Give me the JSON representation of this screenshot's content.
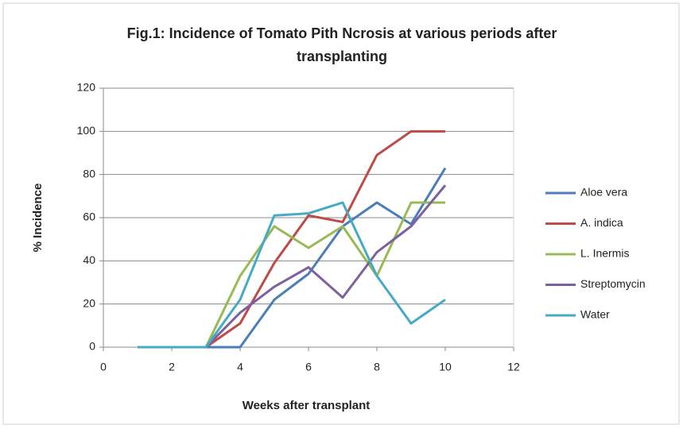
{
  "chart_data": {
    "type": "line",
    "title_lines": [
      "Fig.1: Incidence of Tomato Pith Ncrosis at various periods after",
      "transplanting"
    ],
    "x_label": "Weeks after transplant",
    "y_label": "% Incidence",
    "x": [
      1,
      2,
      3,
      4,
      5,
      6,
      7,
      8,
      9,
      10
    ],
    "series": [
      {
        "name": "Aloe vera",
        "color": "#4a7ebb",
        "values": [
          0,
          0,
          0,
          0,
          22,
          34,
          56,
          67,
          57,
          83
        ]
      },
      {
        "name": "A. indica",
        "color": "#be4b48",
        "values": [
          0,
          0,
          0,
          11,
          39,
          61,
          58,
          89,
          100,
          100
        ]
      },
      {
        "name": "L. Inermis",
        "color": "#98b954",
        "values": [
          0,
          0,
          0,
          33,
          56,
          46,
          56,
          33,
          67,
          67
        ]
      },
      {
        "name": "Streptomycin",
        "color": "#7d60a0",
        "values": [
          0,
          0,
          0,
          16,
          28,
          37,
          23,
          44,
          56,
          75
        ]
      },
      {
        "name": "Water",
        "color": "#46aac5",
        "values": [
          0,
          0,
          0,
          22,
          61,
          62,
          67,
          33,
          11,
          22
        ]
      }
    ],
    "xlim": [
      0,
      12
    ],
    "xticks": [
      0,
      2,
      4,
      6,
      8,
      10,
      12
    ],
    "ylim": [
      0,
      120
    ],
    "yticks": [
      0,
      20,
      40,
      60,
      80,
      100,
      120
    ],
    "grid": true,
    "legend": "right"
  }
}
